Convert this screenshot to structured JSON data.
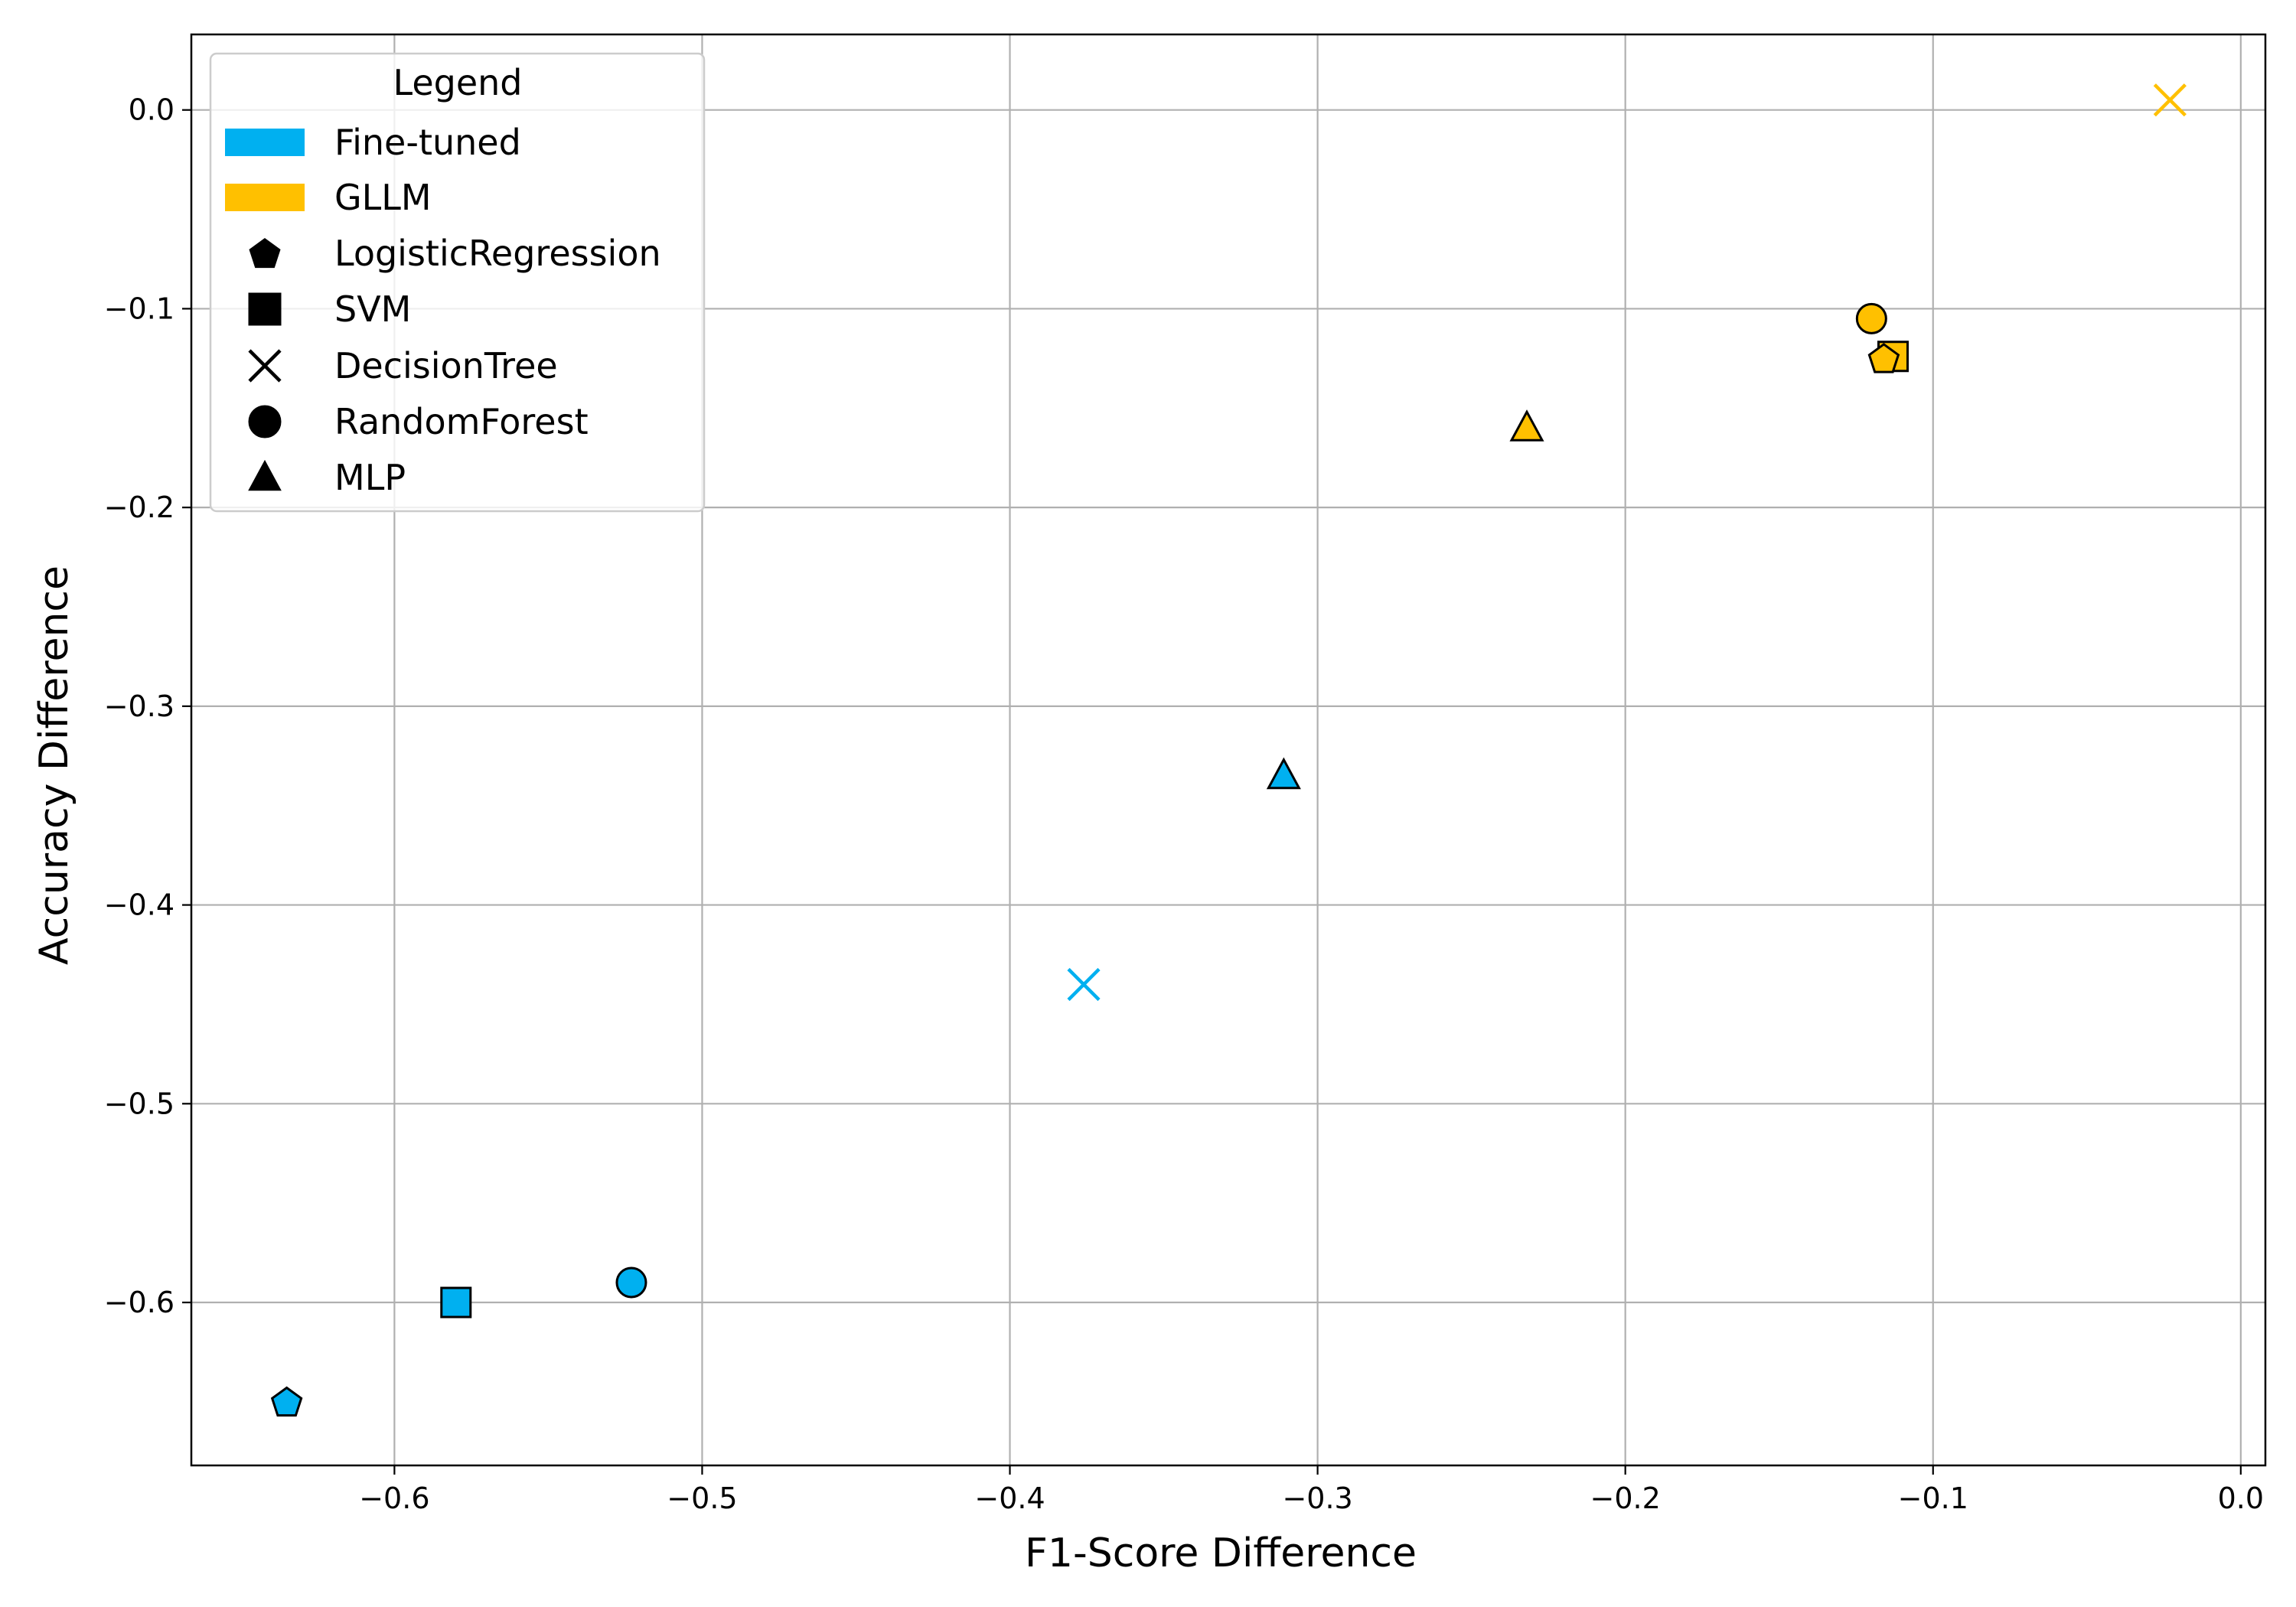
{
  "chart_data": {
    "type": "scatter",
    "title": "",
    "xlabel": "F1-Score Difference",
    "ylabel": "Accuracy Difference",
    "xlim": [
      -0.666,
      0.008
    ],
    "ylim": [
      -0.682,
      0.038
    ],
    "xticks": [
      -0.6,
      -0.5,
      -0.4,
      -0.3,
      -0.2,
      -0.1,
      0.0
    ],
    "xtick_labels": [
      "−0.6",
      "−0.5",
      "−0.4",
      "−0.3",
      "−0.2",
      "−0.1",
      "0.0"
    ],
    "yticks": [
      0.0,
      -0.1,
      -0.2,
      -0.3,
      -0.4,
      -0.5,
      -0.6
    ],
    "ytick_labels": [
      "0.0",
      "−0.1",
      "−0.2",
      "−0.3",
      "−0.4",
      "−0.5",
      "−0.6"
    ],
    "grid": true,
    "legend_position": "top-left",
    "legend": {
      "title": "Legend",
      "groups": [
        {
          "label": "Fine-tuned",
          "color": "#00b0f0"
        },
        {
          "label": "GLLM",
          "color": "#ffc000"
        }
      ],
      "models": [
        {
          "label": "LogisticRegression",
          "marker": "pentagon"
        },
        {
          "label": "SVM",
          "marker": "square"
        },
        {
          "label": "DecisionTree",
          "marker": "x"
        },
        {
          "label": "RandomForest",
          "marker": "circle"
        },
        {
          "label": "MLP",
          "marker": "triangle"
        }
      ]
    },
    "points": [
      {
        "group": "Fine-tuned",
        "model": "LogisticRegression",
        "x": -0.635,
        "y": -0.65
      },
      {
        "group": "Fine-tuned",
        "model": "SVM",
        "x": -0.58,
        "y": -0.6
      },
      {
        "group": "Fine-tuned",
        "model": "RandomForest",
        "x": -0.523,
        "y": -0.59
      },
      {
        "group": "Fine-tuned",
        "model": "DecisionTree",
        "x": -0.376,
        "y": -0.44
      },
      {
        "group": "Fine-tuned",
        "model": "MLP",
        "x": -0.311,
        "y": -0.335
      },
      {
        "group": "GLLM",
        "model": "MLP",
        "x": -0.232,
        "y": -0.16
      },
      {
        "group": "GLLM",
        "model": "RandomForest",
        "x": -0.12,
        "y": -0.105
      },
      {
        "group": "GLLM",
        "model": "SVM",
        "x": -0.113,
        "y": -0.124
      },
      {
        "group": "GLLM",
        "model": "LogisticRegression",
        "x": -0.116,
        "y": -0.125
      },
      {
        "group": "GLLM",
        "model": "DecisionTree",
        "x": -0.023,
        "y": 0.005
      }
    ]
  }
}
